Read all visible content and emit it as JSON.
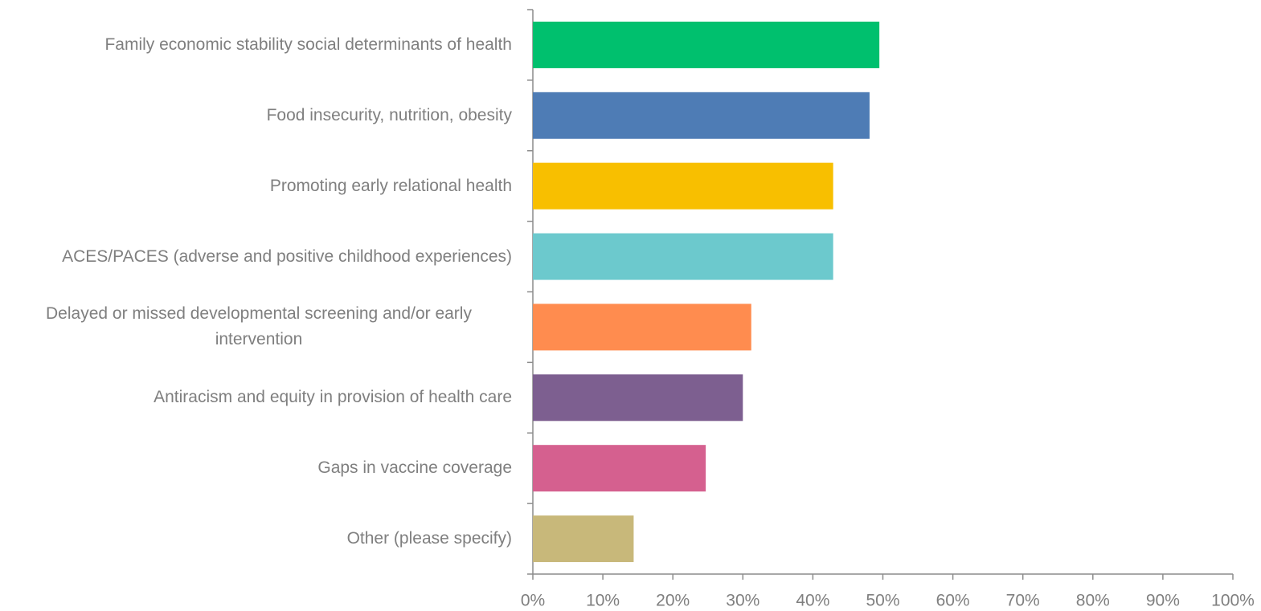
{
  "chart_data": {
    "type": "bar",
    "orientation": "horizontal",
    "categories": [
      "Family economic stability social determinants of health",
      "Food insecurity, nutrition, obesity",
      "Promoting early relational health",
      "ACES/PACES (adverse and positive childhood experiences)",
      "Delayed or missed developmental screening and/or early intervention",
      "Antiracism and equity in provision of health care",
      "Gaps in vaccine coverage",
      "Other (please specify)"
    ],
    "values": [
      49.5,
      48.1,
      42.9,
      42.9,
      31.2,
      30.0,
      24.7,
      14.4
    ],
    "colors": [
      "#00c06e",
      "#4e7cb5",
      "#f8bf00",
      "#6cc9cd",
      "#ff8c4f",
      "#7d5f90",
      "#d5608f",
      "#c8b87a"
    ],
    "xlim": [
      0,
      100
    ],
    "xticks": [
      {
        "value": 0,
        "label": "0%"
      },
      {
        "value": 10,
        "label": "10%"
      },
      {
        "value": 20,
        "label": "20%"
      },
      {
        "value": 30,
        "label": "30%"
      },
      {
        "value": 40,
        "label": "40%"
      },
      {
        "value": 50,
        "label": "50%"
      },
      {
        "value": 60,
        "label": "60%"
      },
      {
        "value": 70,
        "label": "70%"
      },
      {
        "value": 80,
        "label": "80%"
      },
      {
        "value": 90,
        "label": "90%"
      },
      {
        "value": 100,
        "label": "100%"
      }
    ],
    "grid": false
  }
}
